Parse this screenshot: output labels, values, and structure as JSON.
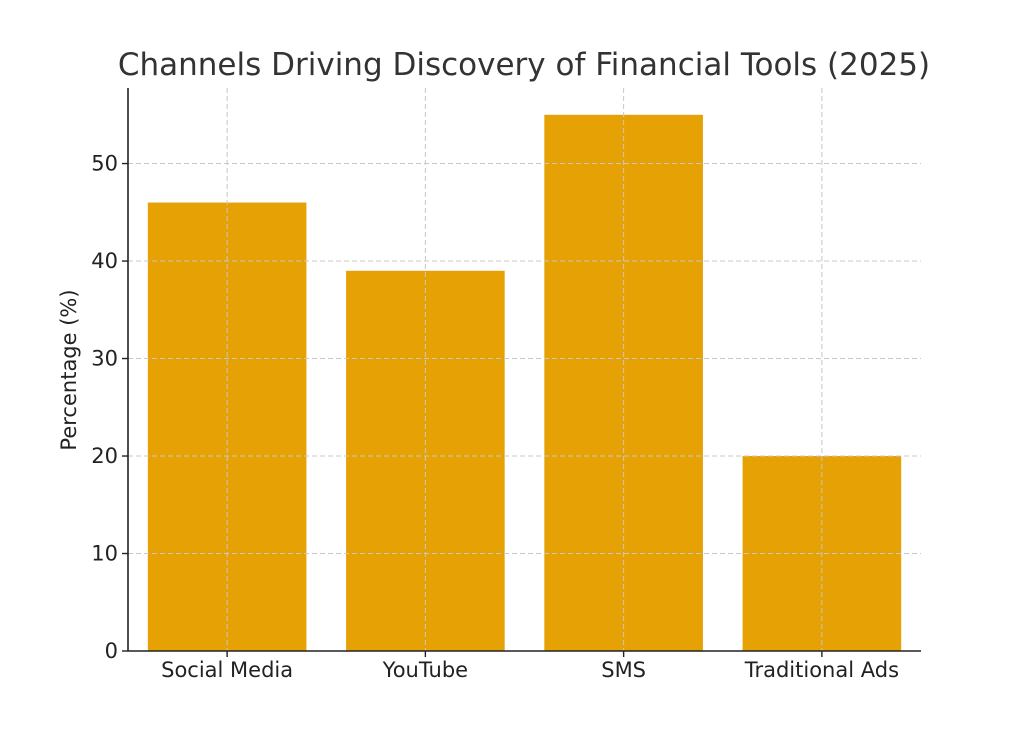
{
  "chart_data": {
    "type": "bar",
    "title": "Channels Driving Discovery of Financial Tools (2025)",
    "xlabel": "",
    "ylabel": "Percentage (%)",
    "categories": [
      "Social Media",
      "YouTube",
      "SMS",
      "Traditional Ads"
    ],
    "values": [
      46,
      39,
      55,
      20
    ],
    "ylim": [
      0,
      57.75
    ],
    "yticks": [
      0,
      10,
      20,
      30,
      40,
      50
    ],
    "grid": true,
    "bar_color": "#e69f00"
  }
}
